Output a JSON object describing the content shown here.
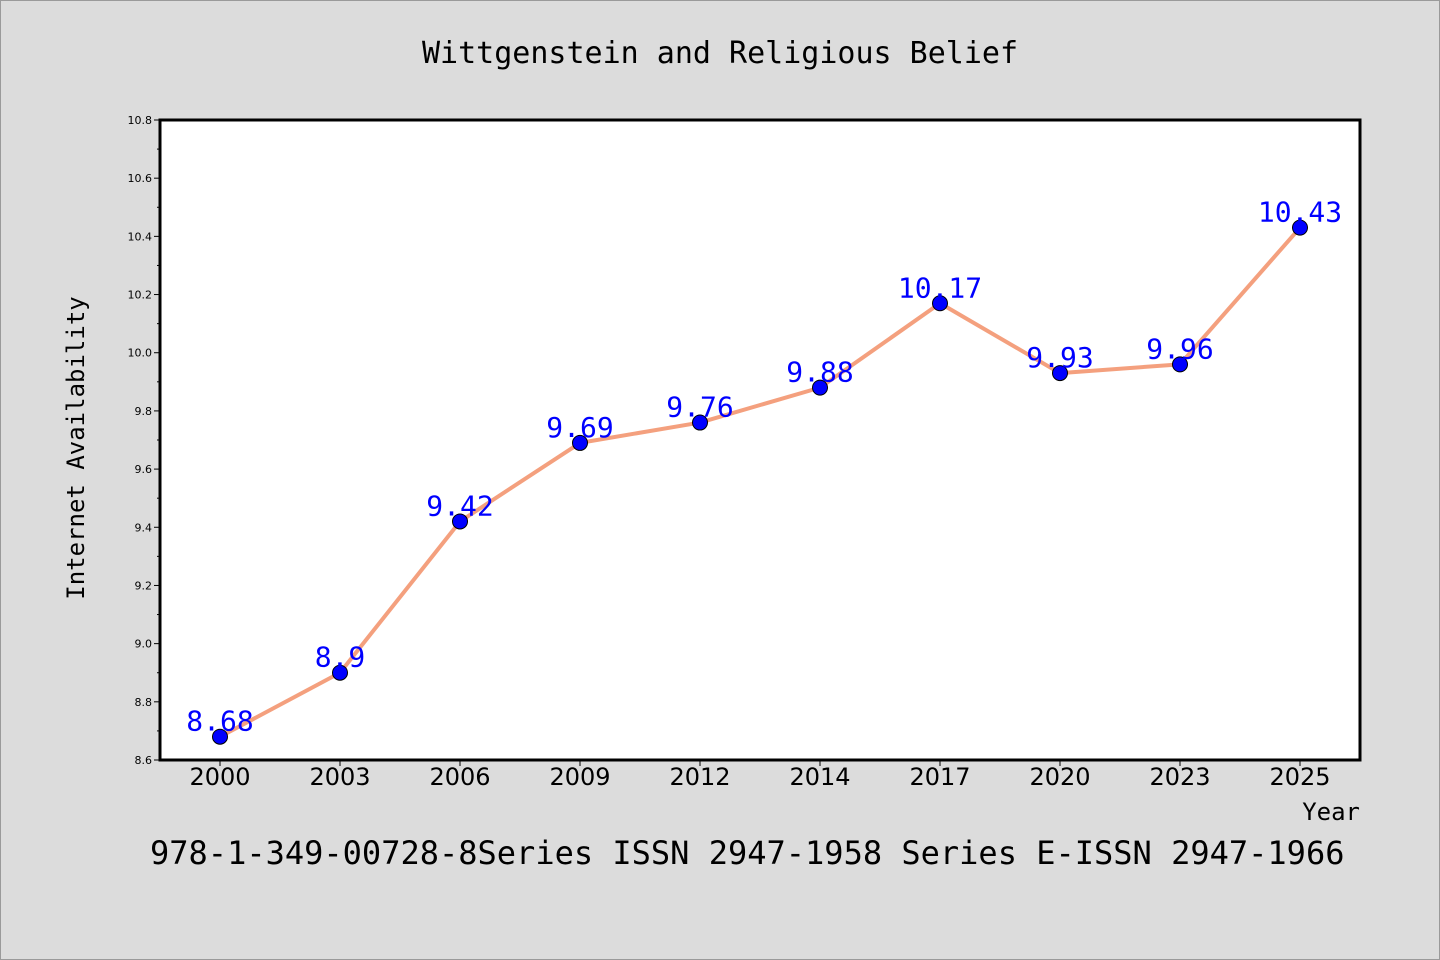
{
  "chart_data": {
    "type": "line",
    "title": "Wittgenstein and Religious Belief",
    "xlabel": "Year",
    "ylabel": "Internet Availability",
    "categories": [
      "2000",
      "2003",
      "2006",
      "2009",
      "2012",
      "2014",
      "2017",
      "2020",
      "2023",
      "2025"
    ],
    "series": [
      {
        "values": [
          8.68,
          8.9,
          9.42,
          9.69,
          9.76,
          9.88,
          10.17,
          9.93,
          9.96,
          10.43
        ],
        "data_labels": [
          "8.68",
          "8.9",
          "9.42",
          "9.69",
          "9.76",
          "9.88",
          "10.17",
          "9.93",
          "9.96",
          "10.43"
        ],
        "line_color": "#f4a07e",
        "marker_color": "#0000ff"
      }
    ],
    "ylim": [
      8.6,
      10.8
    ],
    "yticks": [
      "8.6",
      "8.8",
      "9.0",
      "9.2",
      "9.4",
      "9.6",
      "9.8",
      "10.0",
      "10.2",
      "10.4",
      "10.6",
      "10.8"
    ],
    "grid": false,
    "legend": "none",
    "background_color": "#dcdcdc",
    "plot_background_color": "#ffffff"
  },
  "footer": {
    "text": "978-1-349-00728-8Series ISSN 2947-1958 Series E-ISSN 2947-1966"
  }
}
